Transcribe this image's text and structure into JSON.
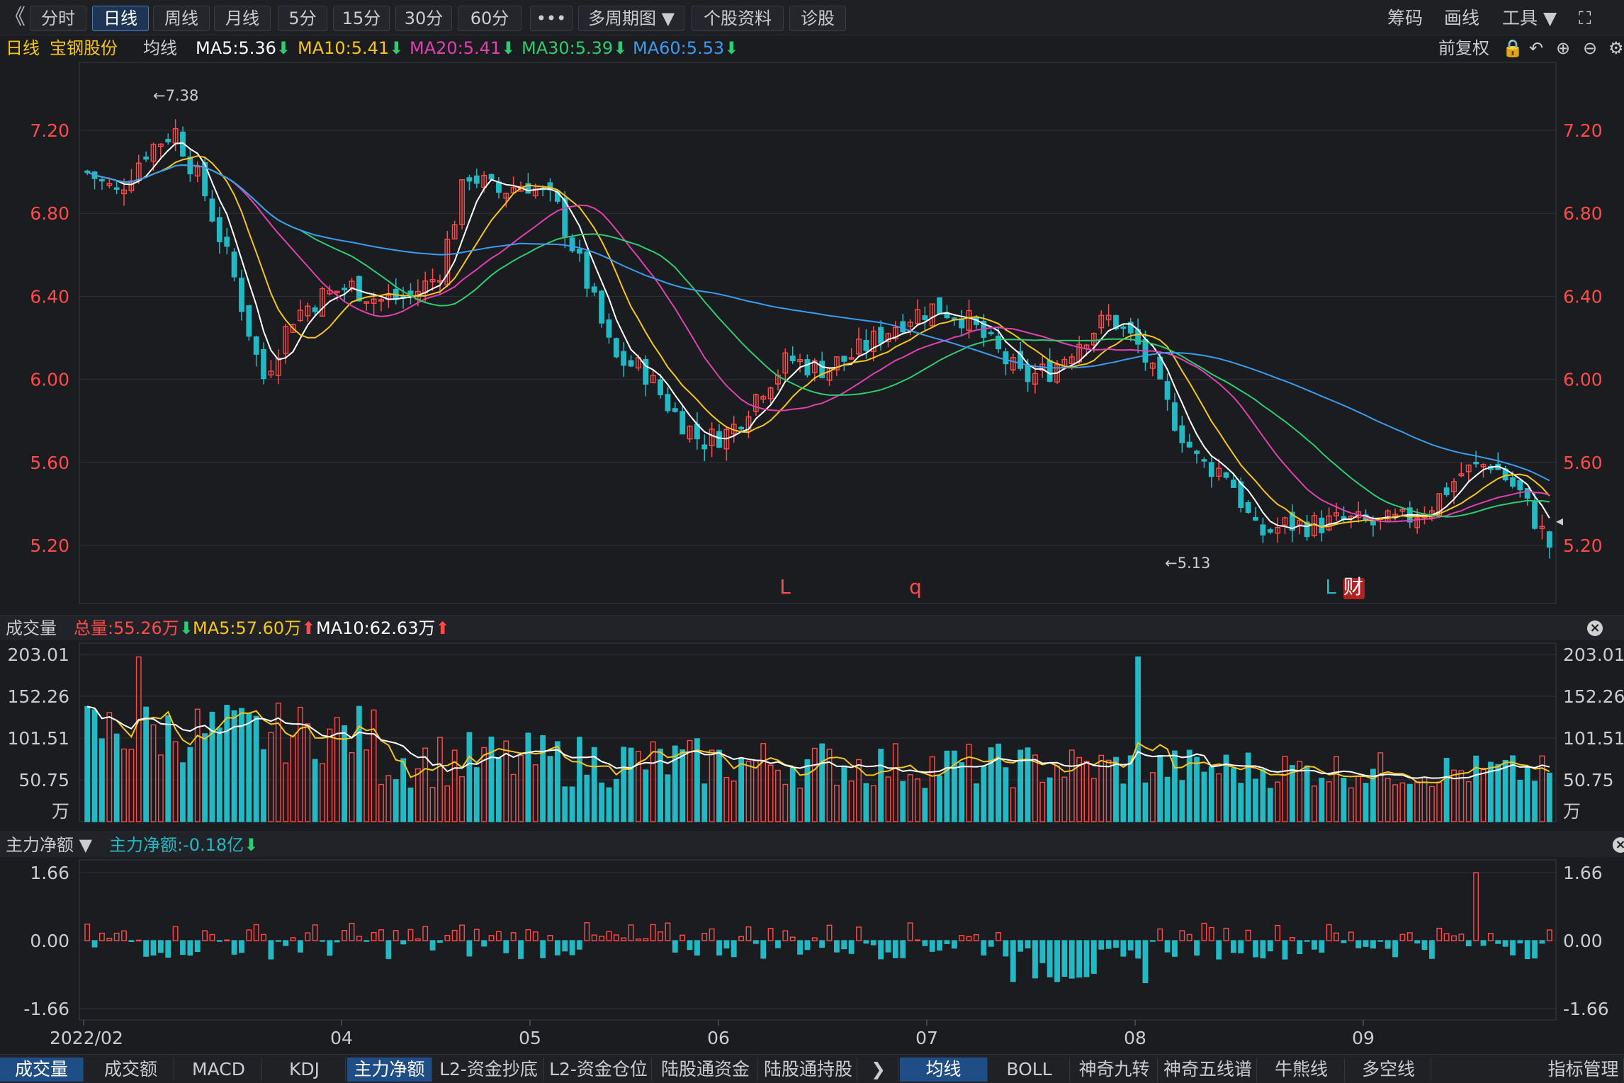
{
  "toolbar": {
    "back_glyph": "《",
    "tabs": [
      "分时",
      "日线",
      "周线",
      "月线",
      "5分",
      "15分",
      "30分",
      "60分",
      "•••",
      "多周期图 ▼",
      "个股资料",
      "诊股"
    ],
    "active_tab": "日线",
    "right": [
      "筹码",
      "画线",
      "工具 ▼",
      "⛶"
    ]
  },
  "info": {
    "period": "日线",
    "stock": "宝钢股份",
    "ma_label": "均线",
    "ma5": "MA5:5.36",
    "ma10": "MA10:5.41",
    "ma20": "MA20:5.41",
    "ma30": "MA30:5.39",
    "ma60": "MA60:5.53",
    "adjust": "前复权"
  },
  "colors": {
    "up": "#ff4a4a",
    "down": "#22b8c4",
    "ma5": "#ffffff",
    "ma10": "#f5c518",
    "ma20": "#e040b0",
    "ma30": "#2ecc71",
    "ma60": "#3a9cf0"
  },
  "price_panel": {
    "y_ticks": [
      "7.20",
      "6.80",
      "6.40",
      "6.00",
      "5.60",
      "5.20"
    ],
    "high_marker": "←7.38",
    "low_marker": "←5.13",
    "signals": [
      {
        "text": "L",
        "color": "#ff4a4a"
      },
      {
        "text": "q",
        "color": "#ff4a4a"
      },
      {
        "text": "L",
        "color": "#22b8c4"
      },
      {
        "text": "财",
        "color": "#ffffff"
      }
    ]
  },
  "volume_panel": {
    "title": "成交量",
    "total": "总量:55.26万",
    "ma5": "MA5:57.60万",
    "ma10": "MA10:62.63万",
    "y_ticks": [
      "203.01",
      "152.26",
      "101.51",
      "50.75"
    ],
    "unit": "万"
  },
  "flow_panel": {
    "title": "主力净额 ▼",
    "value": "主力净额:-0.18亿",
    "y_ticks": [
      "1.66",
      "0.00",
      "-1.66"
    ]
  },
  "x_labels": [
    "2022/02",
    "04",
    "05",
    "06",
    "07",
    "08",
    "09"
  ],
  "bottom_tabs": [
    "成交量",
    "成交额",
    "MACD",
    "KDJ",
    "主力净额",
    "L2-资金抄底",
    "L2-资金仓位",
    "陆股通资金",
    "陆股通持股",
    "❯",
    "均线",
    "BOLL",
    "神奇九转",
    "神奇五线谱",
    "牛熊线",
    "多空线",
    "指标管理"
  ],
  "bottom_active": [
    "成交量",
    "主力净额",
    "均线"
  ],
  "chart_data": {
    "type": "candlestick",
    "title": "宝钢股份 日线",
    "price_range": [
      5.0,
      7.46
    ],
    "closes_approx": [
      7.0,
      6.9,
      7.1,
      7.2,
      6.9,
      6.5,
      6.0,
      6.3,
      6.4,
      6.45,
      6.38,
      6.4,
      6.5,
      7.0,
      6.9,
      6.95,
      6.85,
      6.5,
      6.1,
      6.05,
      5.85,
      5.7,
      5.75,
      5.95,
      6.1,
      6.05,
      6.1,
      6.2,
      6.3,
      6.35,
      6.3,
      6.15,
      6.0,
      6.05,
      6.2,
      6.3,
      6.15,
      5.85,
      5.6,
      5.55,
      5.25,
      5.3,
      5.3,
      5.32,
      5.3,
      5.32,
      5.4,
      5.55,
      5.6,
      5.45,
      5.2
    ],
    "ma5_last": 5.36,
    "ma10_last": 5.41,
    "ma20_last": 5.41,
    "ma30_last": 5.39,
    "ma60_last": 5.53,
    "high": 7.38,
    "low": 5.13,
    "volume_range": [
      0,
      203.01
    ],
    "flow_range": [
      -1.66,
      1.66
    ]
  }
}
